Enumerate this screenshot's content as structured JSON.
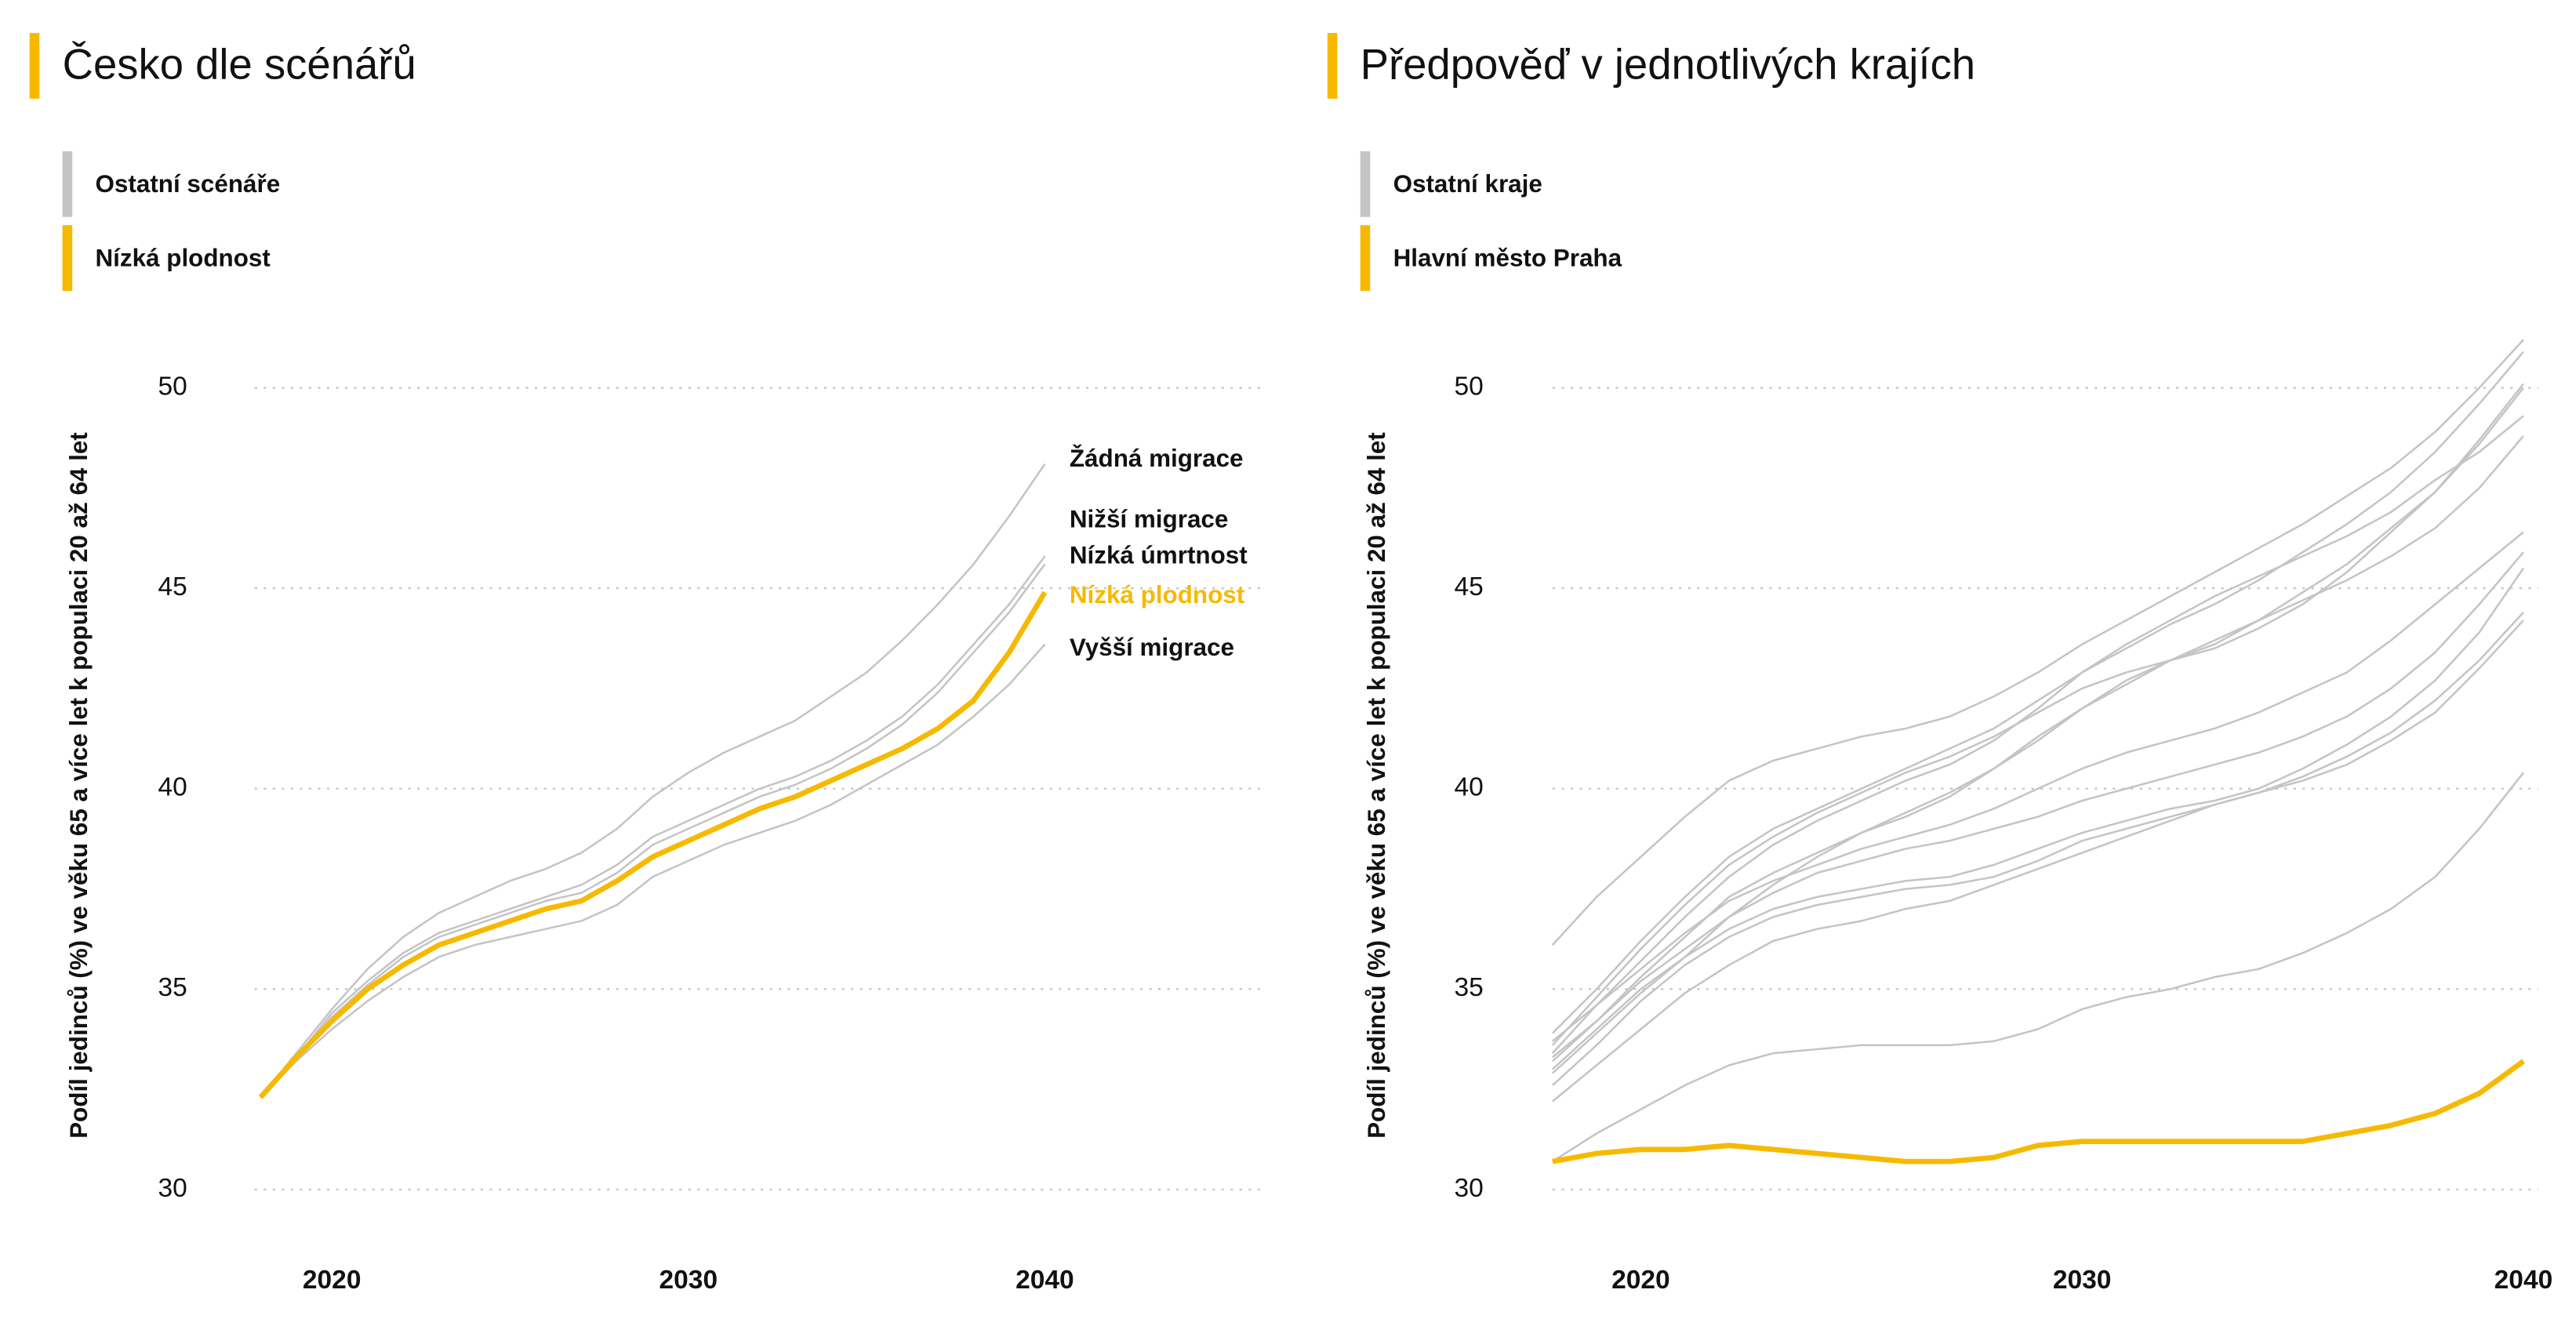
{
  "chart_data": [
    {
      "type": "line",
      "title": "Česko dle scénářů",
      "legend": [
        {
          "label": "Ostatní scénáře",
          "color": "#c4c4c4"
        },
        {
          "label": "Nízká plodnost",
          "color": "#f6b900"
        }
      ],
      "y_label": "Podíl jedinců (%) ve věku 65 a více let k populaci 20 až 64 let",
      "x": [
        2018,
        2019,
        2020,
        2021,
        2022,
        2023,
        2024,
        2025,
        2026,
        2027,
        2028,
        2029,
        2030,
        2031,
        2032,
        2033,
        2034,
        2035,
        2036,
        2037,
        2038,
        2039,
        2040
      ],
      "xlim": [
        2018,
        2040
      ],
      "xticks": [
        2020,
        2030,
        2040
      ],
      "ylim": [
        30,
        50
      ],
      "yticks": [
        30,
        35,
        40,
        45,
        50
      ],
      "grid": true,
      "series": [
        {
          "name": "Žádná migrace",
          "color": "#c4c4c4",
          "values": [
            32.3,
            33.4,
            34.5,
            35.5,
            36.3,
            36.9,
            37.3,
            37.7,
            38.0,
            38.4,
            39.0,
            39.8,
            40.4,
            40.9,
            41.3,
            41.7,
            42.3,
            42.9,
            43.7,
            44.6,
            45.6,
            46.8,
            48.1
          ]
        },
        {
          "name": "Nižší migrace",
          "color": "#c4c4c4",
          "values": [
            32.3,
            33.3,
            34.4,
            35.2,
            35.9,
            36.4,
            36.7,
            37.0,
            37.3,
            37.6,
            38.1,
            38.8,
            39.2,
            39.6,
            40.0,
            40.3,
            40.7,
            41.2,
            41.8,
            42.6,
            43.6,
            44.6,
            45.8
          ]
        },
        {
          "name": "Nízká úmrtnost",
          "color": "#c4c4c4",
          "values": [
            32.3,
            33.3,
            34.3,
            35.1,
            35.8,
            36.3,
            36.6,
            36.9,
            37.2,
            37.4,
            37.9,
            38.6,
            39.0,
            39.4,
            39.8,
            40.1,
            40.5,
            41.0,
            41.6,
            42.4,
            43.4,
            44.4,
            45.6
          ]
        },
        {
          "name": "Nízká plodnost",
          "color": "#f6b900",
          "values": [
            32.3,
            33.3,
            34.2,
            35.0,
            35.6,
            36.1,
            36.4,
            36.7,
            37.0,
            37.2,
            37.7,
            38.3,
            38.7,
            39.1,
            39.5,
            39.8,
            40.2,
            40.6,
            41.0,
            41.5,
            42.2,
            43.4,
            44.9
          ]
        },
        {
          "name": "Vyšší migrace",
          "color": "#c4c4c4",
          "values": [
            32.3,
            33.2,
            34.0,
            34.7,
            35.3,
            35.8,
            36.1,
            36.3,
            36.5,
            36.7,
            37.1,
            37.8,
            38.2,
            38.6,
            38.9,
            39.2,
            39.6,
            40.1,
            40.6,
            41.1,
            41.8,
            42.6,
            43.6
          ]
        }
      ]
    },
    {
      "type": "line",
      "title": "Předpověď v jednotlivých krajích",
      "legend": [
        {
          "label": "Ostatní kraje",
          "color": "#c4c4c4"
        },
        {
          "label": "Hlavní město Praha",
          "color": "#f6b900"
        }
      ],
      "y_label": "Podíl jedinců (%) ve věku 65 a více let k populaci 20 až 64 let",
      "x": [
        2018,
        2019,
        2020,
        2021,
        2022,
        2023,
        2024,
        2025,
        2026,
        2027,
        2028,
        2029,
        2030,
        2031,
        2032,
        2033,
        2034,
        2035,
        2036,
        2037,
        2038,
        2039,
        2040
      ],
      "xlim": [
        2018,
        2040
      ],
      "xticks": [
        2020,
        2030,
        2040
      ],
      "ylim": [
        30,
        50
      ],
      "yticks": [
        30,
        35,
        40,
        45,
        50
      ],
      "grid": true,
      "series": [
        {
          "color": "#c4c4c4",
          "values": [
            36.1,
            37.3,
            38.3,
            39.3,
            40.2,
            40.7,
            41.0,
            41.3,
            41.5,
            41.8,
            42.3,
            42.9,
            43.6,
            44.2,
            44.8,
            45.4,
            46.0,
            46.6,
            47.3,
            48.0,
            48.9,
            50.0,
            51.2
          ]
        },
        {
          "color": "#c4c4c4",
          "values": [
            33.9,
            35.0,
            36.2,
            37.3,
            38.3,
            39.0,
            39.5,
            40.0,
            40.5,
            41.0,
            41.5,
            42.2,
            42.9,
            43.5,
            44.1,
            44.6,
            45.2,
            45.9,
            46.6,
            47.4,
            48.4,
            49.6,
            50.9
          ]
        },
        {
          "color": "#c4c4c4",
          "values": [
            33.6,
            34.8,
            36.0,
            37.1,
            38.1,
            38.8,
            39.4,
            39.9,
            40.4,
            40.8,
            41.3,
            41.9,
            42.5,
            42.9,
            43.2,
            43.5,
            44.0,
            44.6,
            45.4,
            46.4,
            47.4,
            48.7,
            50.1
          ]
        },
        {
          "color": "#c4c4c4",
          "values": [
            33.4,
            34.6,
            35.7,
            36.8,
            37.8,
            38.6,
            39.2,
            39.7,
            40.2,
            40.6,
            41.2,
            42.0,
            42.9,
            43.6,
            44.2,
            44.8,
            45.3,
            45.8,
            46.3,
            46.9,
            47.7,
            48.4,
            49.3
          ]
        },
        {
          "color": "#c4c4c4",
          "values": [
            33.2,
            34.2,
            35.3,
            36.3,
            37.3,
            37.9,
            38.4,
            38.9,
            39.3,
            39.8,
            40.5,
            41.2,
            42.0,
            42.6,
            43.2,
            43.7,
            44.2,
            44.7,
            45.2,
            45.8,
            46.5,
            47.5,
            48.8
          ]
        },
        {
          "color": "#c4c4c4",
          "values": [
            32.9,
            33.9,
            34.9,
            35.8,
            36.8,
            37.6,
            38.3,
            38.9,
            39.4,
            39.9,
            40.5,
            41.3,
            42.0,
            42.7,
            43.2,
            43.6,
            44.2,
            44.9,
            45.6,
            46.5,
            47.4,
            48.6,
            50.0
          ]
        },
        {
          "color": "#c4c4c4",
          "values": [
            33.7,
            34.6,
            35.5,
            36.4,
            37.2,
            37.7,
            38.1,
            38.5,
            38.8,
            39.1,
            39.5,
            40.0,
            40.5,
            40.9,
            41.2,
            41.5,
            41.9,
            42.4,
            42.9,
            43.7,
            44.6,
            45.5,
            46.4
          ]
        },
        {
          "color": "#c4c4c4",
          "values": [
            33.3,
            34.2,
            35.2,
            36.0,
            36.8,
            37.4,
            37.9,
            38.2,
            38.5,
            38.7,
            39.0,
            39.3,
            39.7,
            40.0,
            40.3,
            40.6,
            40.9,
            41.3,
            41.8,
            42.5,
            43.4,
            44.6,
            45.9
          ]
        },
        {
          "color": "#c4c4c4",
          "values": [
            33.0,
            34.0,
            35.0,
            35.8,
            36.5,
            37.0,
            37.3,
            37.5,
            37.7,
            37.8,
            38.1,
            38.5,
            38.9,
            39.2,
            39.5,
            39.7,
            40.0,
            40.5,
            41.1,
            41.8,
            42.7,
            43.9,
            45.5
          ]
        },
        {
          "color": "#c4c4c4",
          "values": [
            32.6,
            33.6,
            34.7,
            35.6,
            36.3,
            36.8,
            37.1,
            37.3,
            37.5,
            37.6,
            37.8,
            38.2,
            38.7,
            39.0,
            39.3,
            39.6,
            39.9,
            40.3,
            40.8,
            41.4,
            42.2,
            43.2,
            44.4
          ]
        },
        {
          "color": "#c4c4c4",
          "values": [
            32.2,
            33.1,
            34.0,
            34.9,
            35.6,
            36.2,
            36.5,
            36.7,
            37.0,
            37.2,
            37.6,
            38.0,
            38.4,
            38.8,
            39.2,
            39.6,
            39.9,
            40.2,
            40.6,
            41.2,
            41.9,
            43.0,
            44.2
          ]
        },
        {
          "color": "#c4c4c4",
          "values": [
            30.7,
            31.4,
            32.0,
            32.6,
            33.1,
            33.4,
            33.5,
            33.6,
            33.6,
            33.6,
            33.7,
            34.0,
            34.5,
            34.8,
            35.0,
            35.3,
            35.5,
            35.9,
            36.4,
            37.0,
            37.8,
            39.0,
            40.4
          ]
        },
        {
          "color": "#f6b900",
          "values": [
            30.7,
            30.9,
            31.0,
            31.0,
            31.1,
            31.0,
            30.9,
            30.8,
            30.7,
            30.7,
            30.8,
            31.1,
            31.2,
            31.2,
            31.2,
            31.2,
            31.2,
            31.2,
            31.4,
            31.6,
            31.9,
            32.4,
            33.2
          ]
        }
      ]
    }
  ]
}
